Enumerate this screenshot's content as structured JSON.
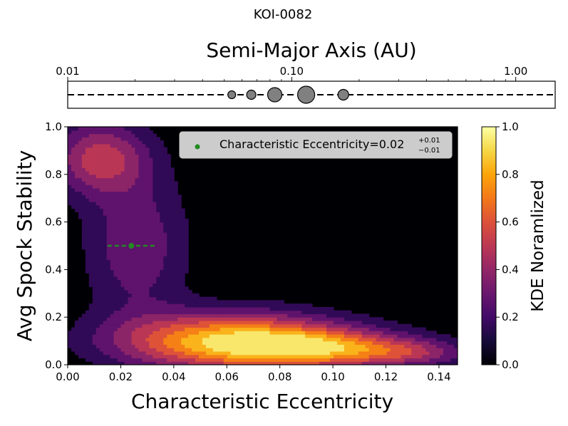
{
  "figure_title": "KOI-0082",
  "chart_data": [
    {
      "type": "scatter",
      "panel": "orbit-strip",
      "title": "Semi-Major Axis (AU)",
      "xscale": "log",
      "xlim": [
        0.01,
        1.5
      ],
      "tick_labels": [
        "0.01",
        "0.10",
        "1.00"
      ],
      "tick_values": [
        0.01,
        0.1,
        1.0
      ],
      "marker_color": "#808080",
      "line_style": "dashed",
      "planets": [
        {
          "a": 0.054,
          "relative_size": 0.55
        },
        {
          "a": 0.066,
          "relative_size": 0.65
        },
        {
          "a": 0.084,
          "relative_size": 1.0
        },
        {
          "a": 0.116,
          "relative_size": 1.2
        },
        {
          "a": 0.17,
          "relative_size": 0.75
        }
      ]
    },
    {
      "type": "heatmap",
      "panel": "kde-contour",
      "xlabel": "Characteristic Eccentricity",
      "ylabel": "Avg Spock Stability",
      "xlim": [
        0.0,
        0.147
      ],
      "ylim": [
        0.0,
        1.0
      ],
      "x_ticks": [
        "0.00",
        "0.02",
        "0.04",
        "0.06",
        "0.08",
        "0.10",
        "0.12",
        "0.14"
      ],
      "x_tick_values": [
        0.0,
        0.02,
        0.04,
        0.06,
        0.08,
        0.1,
        0.12,
        0.14
      ],
      "y_ticks": [
        "0.0",
        "0.2",
        "0.4",
        "0.6",
        "0.8",
        "1.0"
      ],
      "y_tick_values": [
        0.0,
        0.2,
        0.4,
        0.6,
        0.8,
        1.0
      ],
      "colormap": "inferno",
      "colorbar": {
        "label": "KDE Noramlized",
        "ticks": [
          "0.0",
          "0.2",
          "0.4",
          "0.6",
          "0.8",
          "1.0"
        ],
        "tick_values": [
          0.0,
          0.2,
          0.4,
          0.6,
          0.8,
          1.0
        ]
      },
      "contour_levels": [
        0.1,
        0.2,
        0.3,
        0.4,
        0.5,
        0.6,
        0.7,
        0.8
      ],
      "kde_modes": [
        {
          "x": 0.062,
          "y": 0.1,
          "sx": 0.03,
          "sy": 0.085,
          "w": 1.0
        },
        {
          "x": 0.098,
          "y": 0.07,
          "sx": 0.024,
          "sy": 0.055,
          "w": 0.62
        },
        {
          "x": 0.012,
          "y": 0.87,
          "sx": 0.013,
          "sy": 0.11,
          "w": 0.55
        },
        {
          "x": 0.026,
          "y": 0.5,
          "sx": 0.014,
          "sy": 0.22,
          "w": 0.35
        },
        {
          "x": 0.13,
          "y": 0.05,
          "sx": 0.016,
          "sy": 0.04,
          "w": 0.32
        }
      ],
      "highlight_point": {
        "x": 0.024,
        "y": 0.5,
        "xerr_minus": 0.009,
        "xerr_plus": 0.009,
        "color": "#228b22"
      },
      "legend": {
        "location": "upper right",
        "text": "Characteristic Eccentricity=0.02",
        "sup": "+0.01",
        "sub": "−0.01"
      }
    }
  ]
}
